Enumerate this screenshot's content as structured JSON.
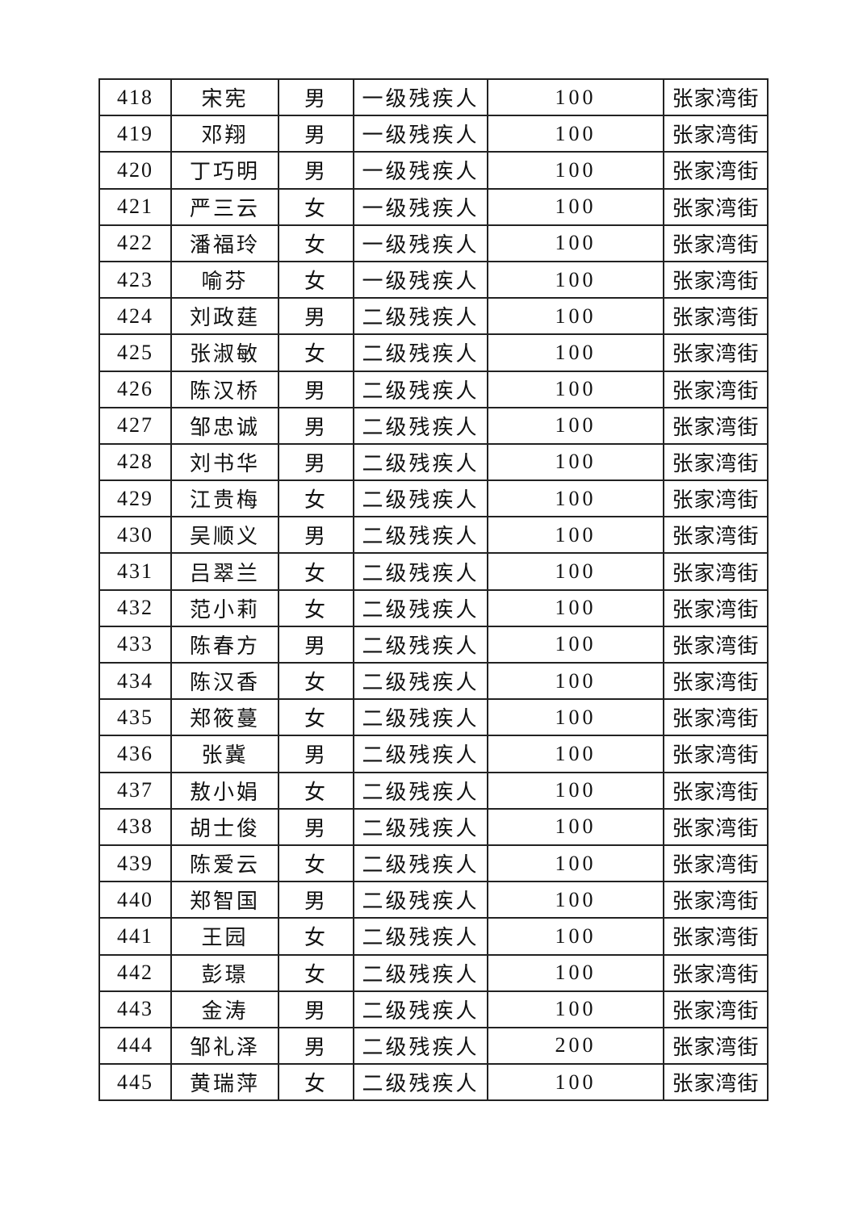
{
  "table": {
    "rows": [
      [
        "418",
        "宋宪",
        "男",
        "一级残疾人",
        "100",
        "张家湾街"
      ],
      [
        "419",
        "邓翔",
        "男",
        "一级残疾人",
        "100",
        "张家湾街"
      ],
      [
        "420",
        "丁巧明",
        "男",
        "一级残疾人",
        "100",
        "张家湾街"
      ],
      [
        "421",
        "严三云",
        "女",
        "一级残疾人",
        "100",
        "张家湾街"
      ],
      [
        "422",
        "潘福玲",
        "女",
        "一级残疾人",
        "100",
        "张家湾街"
      ],
      [
        "423",
        "喻芬",
        "女",
        "一级残疾人",
        "100",
        "张家湾街"
      ],
      [
        "424",
        "刘政莛",
        "男",
        "二级残疾人",
        "100",
        "张家湾街"
      ],
      [
        "425",
        "张淑敏",
        "女",
        "二级残疾人",
        "100",
        "张家湾街"
      ],
      [
        "426",
        "陈汉桥",
        "男",
        "二级残疾人",
        "100",
        "张家湾街"
      ],
      [
        "427",
        "邹忠诚",
        "男",
        "二级残疾人",
        "100",
        "张家湾街"
      ],
      [
        "428",
        "刘书华",
        "男",
        "二级残疾人",
        "100",
        "张家湾街"
      ],
      [
        "429",
        "江贵梅",
        "女",
        "二级残疾人",
        "100",
        "张家湾街"
      ],
      [
        "430",
        "吴顺义",
        "男",
        "二级残疾人",
        "100",
        "张家湾街"
      ],
      [
        "431",
        "吕翠兰",
        "女",
        "二级残疾人",
        "100",
        "张家湾街"
      ],
      [
        "432",
        "范小莉",
        "女",
        "二级残疾人",
        "100",
        "张家湾街"
      ],
      [
        "433",
        "陈春方",
        "男",
        "二级残疾人",
        "100",
        "张家湾街"
      ],
      [
        "434",
        "陈汉香",
        "女",
        "二级残疾人",
        "100",
        "张家湾街"
      ],
      [
        "435",
        "郑筱蔓",
        "女",
        "二级残疾人",
        "100",
        "张家湾街"
      ],
      [
        "436",
        "张冀",
        "男",
        "二级残疾人",
        "100",
        "张家湾街"
      ],
      [
        "437",
        "敖小娟",
        "女",
        "二级残疾人",
        "100",
        "张家湾街"
      ],
      [
        "438",
        "胡士俊",
        "男",
        "二级残疾人",
        "100",
        "张家湾街"
      ],
      [
        "439",
        "陈爱云",
        "女",
        "二级残疾人",
        "100",
        "张家湾街"
      ],
      [
        "440",
        "郑智国",
        "男",
        "二级残疾人",
        "100",
        "张家湾街"
      ],
      [
        "441",
        "王园",
        "女",
        "二级残疾人",
        "100",
        "张家湾街"
      ],
      [
        "442",
        "彭璟",
        "女",
        "二级残疾人",
        "100",
        "张家湾街"
      ],
      [
        "443",
        "金涛",
        "男",
        "二级残疾人",
        "100",
        "张家湾街"
      ],
      [
        "444",
        "邹礼泽",
        "男",
        "二级残疾人",
        "200",
        "张家湾街"
      ],
      [
        "445",
        "黄瑞萍",
        "女",
        "二级残疾人",
        "100",
        "张家湾街"
      ]
    ]
  }
}
